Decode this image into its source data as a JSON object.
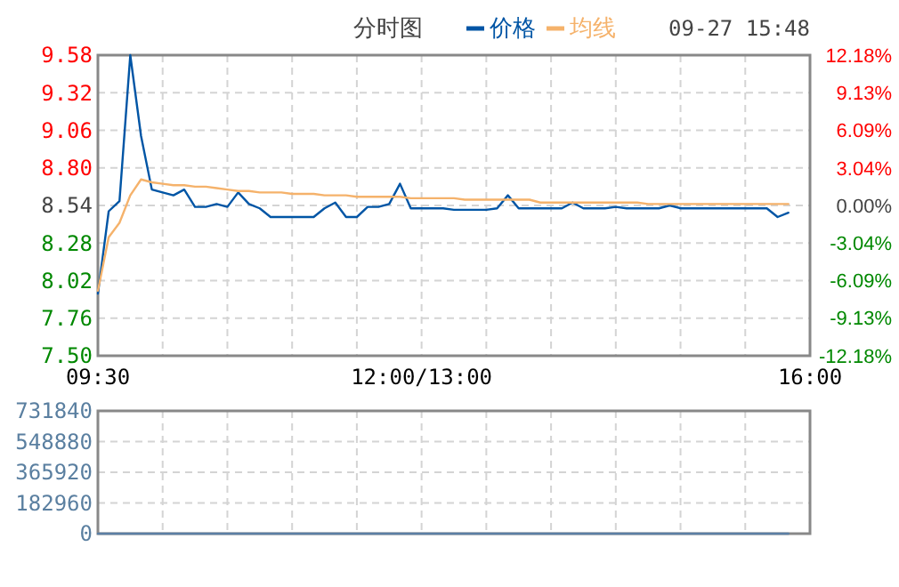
{
  "chart_data": [
    {
      "type": "line",
      "title": "分时图",
      "annotations": [
        "09-27 15:48"
      ],
      "legend": "top",
      "grid": true,
      "categories": [
        "09:30",
        null,
        null,
        null,
        null,
        null,
        null,
        null,
        null,
        null,
        null,
        null,
        null,
        null,
        null,
        null,
        null,
        null,
        null,
        null,
        null,
        null,
        null,
        null,
        null,
        null,
        null,
        null,
        null,
        null,
        "12:00/13:00",
        null,
        null,
        null,
        null,
        null,
        null,
        null,
        null,
        null,
        null,
        null,
        null,
        null,
        null,
        null,
        null,
        null,
        null,
        null,
        null,
        null,
        null,
        null,
        null,
        null,
        null,
        null,
        null,
        null,
        null,
        null,
        null,
        null,
        null,
        null,
        "16:00"
      ],
      "ylim": [
        7.5,
        9.58
      ],
      "yticks": [
        {
          "value": 7.5,
          "label": "7.50"
        },
        {
          "value": 7.76,
          "label": "7.76"
        },
        {
          "value": 8.02,
          "label": "8.02"
        },
        {
          "value": 8.28,
          "label": "8.28"
        },
        {
          "value": 8.54,
          "label": "8.54"
        },
        {
          "value": 8.8,
          "label": "8.80"
        },
        {
          "value": 9.06,
          "label": "9.06"
        },
        {
          "value": 9.32,
          "label": "9.32"
        },
        {
          "value": 9.58,
          "label": "9.58"
        }
      ],
      "y2lim": [
        -12.18,
        12.18
      ],
      "y2ticks": [
        {
          "value": -12.18,
          "label": "-12.18%"
        },
        {
          "value": -9.13,
          "label": "-9.13%"
        },
        {
          "value": -6.09,
          "label": "-6.09%"
        },
        {
          "value": -3.04,
          "label": "-3.04%"
        },
        {
          "value": 0,
          "label": "0.00%"
        },
        {
          "value": 3.04,
          "label": "3.04%"
        },
        {
          "value": 6.09,
          "label": "6.09%"
        },
        {
          "value": 9.13,
          "label": "9.13%"
        },
        {
          "value": 12.18,
          "label": "12.18%"
        }
      ],
      "series": [
        {
          "name": "价格",
          "color": "#0055a5",
          "values": [
            7.93,
            8.5,
            8.57,
            9.58,
            9.02,
            8.65,
            8.63,
            8.61,
            8.65,
            8.53,
            8.53,
            8.55,
            8.53,
            8.63,
            8.55,
            8.52,
            8.46,
            8.46,
            8.46,
            8.46,
            8.46,
            8.52,
            8.56,
            8.46,
            8.46,
            8.53,
            8.53,
            8.55,
            8.69,
            8.52,
            8.52,
            8.52,
            8.52,
            8.51,
            8.51,
            8.51,
            8.51,
            8.52,
            8.61,
            8.52,
            8.52,
            8.52,
            8.52,
            8.52,
            8.56,
            8.52,
            8.52,
            8.52,
            8.53,
            8.52,
            8.52,
            8.52,
            8.52,
            8.54,
            8.52,
            8.52,
            8.52,
            8.52,
            8.52,
            8.52,
            8.52,
            8.52,
            8.52,
            8.46,
            8.49,
            null,
            null
          ]
        },
        {
          "name": "均线",
          "color": "#f5b26b",
          "values": [
            7.95,
            8.32,
            8.42,
            8.61,
            8.72,
            8.7,
            8.69,
            8.68,
            8.68,
            8.67,
            8.67,
            8.66,
            8.65,
            8.64,
            8.64,
            8.63,
            8.63,
            8.63,
            8.62,
            8.62,
            8.62,
            8.61,
            8.61,
            8.61,
            8.6,
            8.6,
            8.6,
            8.6,
            8.6,
            8.59,
            8.59,
            8.59,
            8.59,
            8.59,
            8.58,
            8.58,
            8.58,
            8.58,
            8.58,
            8.58,
            8.58,
            8.56,
            8.56,
            8.56,
            8.56,
            8.56,
            8.56,
            8.56,
            8.56,
            8.56,
            8.56,
            8.55,
            8.55,
            8.55,
            8.55,
            8.55,
            8.55,
            8.55,
            8.55,
            8.55,
            8.55,
            8.55,
            8.55,
            8.55,
            8.55,
            null,
            null
          ]
        }
      ]
    },
    {
      "type": "line",
      "grid": true,
      "tick_labels": "y",
      "categories": [
        null,
        null,
        null,
        null,
        null,
        null,
        null,
        null,
        null,
        null,
        null,
        null,
        null,
        null,
        null,
        null,
        null,
        null,
        null,
        null,
        null,
        null,
        null,
        null,
        null,
        null,
        null,
        null,
        null,
        null,
        null,
        null,
        null,
        null,
        null,
        null,
        null,
        null,
        null,
        null,
        null,
        null,
        null,
        null,
        null,
        null,
        null,
        null,
        null,
        null,
        null,
        null,
        null,
        null,
        null,
        null,
        null,
        null,
        null,
        null,
        null,
        null,
        null,
        null,
        null,
        null,
        null
      ],
      "ylim": [
        0,
        731840
      ],
      "yticks": [
        0,
        182960,
        365920,
        548880,
        731840
      ],
      "series": [
        {
          "color": "#5b7fa5",
          "values": [
            0,
            0,
            0,
            0,
            0,
            0,
            0,
            0,
            0,
            0,
            0,
            0,
            0,
            0,
            0,
            0,
            0,
            0,
            0,
            0,
            0,
            0,
            0,
            0,
            0,
            0,
            0,
            0,
            0,
            0,
            0,
            0,
            0,
            0,
            0,
            0,
            0,
            0,
            0,
            0,
            0,
            0,
            0,
            0,
            0,
            0,
            0,
            0,
            0,
            0,
            0,
            0,
            0,
            0,
            0,
            0,
            0,
            0,
            0,
            0,
            0,
            0,
            0,
            0,
            0,
            null,
            null
          ]
        }
      ]
    }
  ]
}
